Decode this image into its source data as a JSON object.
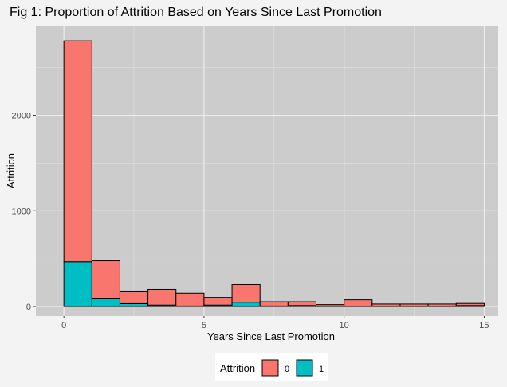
{
  "chart_data": {
    "type": "bar",
    "title": "Fig 1: Proportion of Attrition Based on Years Since Last Promotion",
    "xlabel": "Years Since Last Promotion",
    "ylabel": "Attrition",
    "xlim": [
      -1,
      15.5
    ],
    "ylim": [
      -100,
      2940
    ],
    "x_ticks": [
      0,
      5,
      10,
      15
    ],
    "y_ticks": [
      0,
      1000,
      2000
    ],
    "grid": true,
    "legend_position": "bottom",
    "bin_width": 1,
    "bins": [
      0,
      1,
      2,
      3,
      4,
      5,
      6,
      7,
      8,
      9,
      10,
      11,
      12,
      13,
      14
    ],
    "series": [
      {
        "name": "1",
        "color": "#00BFC4",
        "values": [
          470,
          80,
          30,
          15,
          5,
          15,
          45,
          5,
          10,
          5,
          3,
          3,
          3,
          3,
          10
        ]
      },
      {
        "name": "0",
        "color": "#F8766D",
        "values": [
          2310,
          400,
          125,
          165,
          135,
          80,
          185,
          45,
          40,
          15,
          67,
          23,
          23,
          23,
          22
        ]
      }
    ],
    "legend": {
      "title": "Attrition",
      "items": [
        {
          "label": "0",
          "color": "#F8766D"
        },
        {
          "label": "1",
          "color": "#00BFC4"
        }
      ]
    }
  }
}
